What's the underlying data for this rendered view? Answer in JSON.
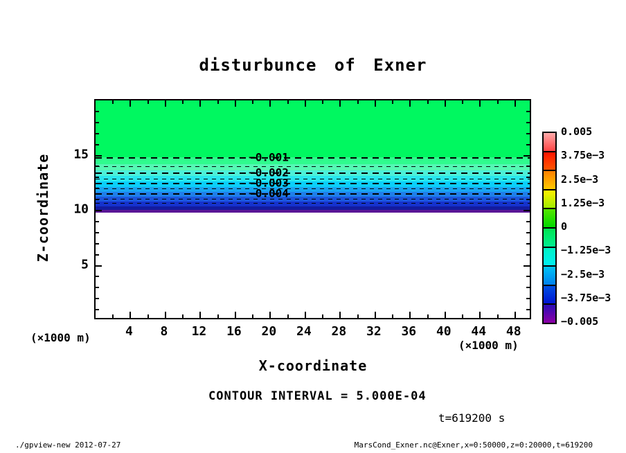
{
  "title": "disturbunce of Exner",
  "annotations": {
    "contour_interval": "CONTOUR INTERVAL = 5.000E-04",
    "time": "t=619200 s"
  },
  "footer": {
    "left": "./gpview-new  2012-07-27",
    "right": "MarsCond_Exner.nc@Exner,x=0:50000,z=0:20000,t=619200"
  },
  "axes": {
    "x": {
      "label": "X-coordinate",
      "unit": "(×1000 m)",
      "min": 0,
      "max": 50,
      "major_ticks": [
        4,
        8,
        12,
        16,
        20,
        24,
        28,
        32,
        36,
        40,
        44,
        48
      ],
      "minor_step": 2
    },
    "z": {
      "label": "Z-coordinate",
      "unit": "(×1000 m)",
      "min": 0,
      "max": 20,
      "major_ticks": [
        5,
        10,
        15
      ],
      "minor_step": 1
    }
  },
  "colorbar": {
    "labels": [
      "0.005",
      "3.75e−3",
      "2.5e−3",
      "1.25e−3",
      "0",
      "−1.25e−3",
      "−2.5e−3",
      "−3.75e−3",
      "−0.005"
    ],
    "cells": [
      {
        "top": "#ffaaaa",
        "bottom": "#ff4444"
      },
      {
        "top": "#ff1500",
        "bottom": "#ff5500"
      },
      {
        "top": "#ff8000",
        "bottom": "#ffc800"
      },
      {
        "top": "#fff000",
        "bottom": "#a0ee00"
      },
      {
        "top": "#55e600",
        "bottom": "#00d800"
      },
      {
        "top": "#00e350",
        "bottom": "#00ee92"
      },
      {
        "top": "#00f3c4",
        "bottom": "#00eef2"
      },
      {
        "top": "#00c4f6",
        "bottom": "#0080ee"
      },
      {
        "top": "#0050e2",
        "bottom": "#0014d2"
      },
      {
        "top": "#2a0cb6",
        "bottom": "#8e00a6"
      }
    ]
  },
  "chart_data": {
    "type": "filled-contour",
    "title": "disturbunce of Exner",
    "xlabel": "X-coordinate",
    "ylabel": "Z-coordinate",
    "units": "×1000 m",
    "xlim": [
      0,
      50
    ],
    "ylim": [
      0,
      20
    ],
    "contour_interval": 0.0005,
    "colorbar_ticks": [
      0.005,
      0.00375,
      0.0025,
      0.00125,
      0,
      -0.00125,
      -0.0025,
      -0.00375,
      -0.005
    ],
    "time_seconds": 619200,
    "bands": [
      {
        "z_top": 20.0,
        "z_bottom": 14.83,
        "color": "#00f860"
      },
      {
        "z_top": 14.83,
        "z_bottom": 14.2,
        "color": "#30fb8e"
      },
      {
        "z_top": 14.2,
        "z_bottom": 13.63,
        "color": "#55f8b4"
      },
      {
        "z_top": 13.63,
        "z_bottom": 13.13,
        "color": "#4df0d8"
      },
      {
        "z_top": 13.13,
        "z_bottom": 12.62,
        "color": "#27e6ef"
      },
      {
        "z_top": 12.62,
        "z_bottom": 12.12,
        "color": "#0bd0fa"
      },
      {
        "z_top": 12.12,
        "z_bottom": 11.68,
        "color": "#19a5f2"
      },
      {
        "z_top": 11.68,
        "z_bottom": 11.24,
        "color": "#1f7fea"
      },
      {
        "z_top": 11.24,
        "z_bottom": 10.8,
        "color": "#1b55dd"
      },
      {
        "z_top": 10.8,
        "z_bottom": 10.36,
        "color": "#1532cd"
      },
      {
        "z_top": 10.36,
        "z_bottom": 10.04,
        "color": "#131b9f"
      },
      {
        "z_top": 10.04,
        "z_bottom": 9.78,
        "color": "#5a1697"
      },
      {
        "z_top": 9.78,
        "z_bottom": 0.0,
        "color": "#ffffff"
      }
    ],
    "contours": [
      {
        "level": -0.001,
        "z": 14.76,
        "thick": true,
        "label": "−0.001"
      },
      {
        "level": -0.0015,
        "z": 14.0,
        "thick": false,
        "label": null
      },
      {
        "level": -0.002,
        "z": 13.38,
        "thick": true,
        "label": "−0.002"
      },
      {
        "level": -0.0025,
        "z": 12.87,
        "thick": false,
        "label": null
      },
      {
        "level": -0.003,
        "z": 12.43,
        "thick": true,
        "label": "−0.003"
      },
      {
        "level": -0.0035,
        "z": 12.0,
        "thick": false,
        "label": null
      },
      {
        "level": -0.004,
        "z": 11.48,
        "thick": true,
        "label": "−0.004"
      },
      {
        "level": -0.0045,
        "z": 11.04,
        "thick": false,
        "label": null
      },
      {
        "level": -0.005,
        "z": 10.66,
        "thick": false,
        "label": null
      }
    ]
  }
}
